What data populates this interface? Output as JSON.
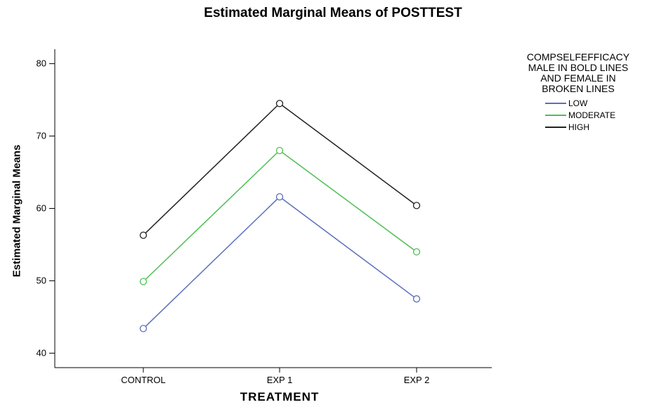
{
  "chart_data": {
    "type": "line",
    "title": "Estimated Marginal Means of POSTTEST",
    "xlabel": "TREATMENT",
    "ylabel": "Estimated Marginal Means",
    "categories": [
      "CONTROL",
      "EXP 1",
      "EXP 2"
    ],
    "ylim": [
      38,
      82
    ],
    "yticks": [
      40,
      50,
      60,
      70,
      80
    ],
    "grid": false,
    "legend": {
      "title": "COMPSELFEFFICACY\nMALE IN BOLD LINES\nAND FEMALE IN\nBROKEN LINES",
      "placement": "right"
    },
    "series": [
      {
        "name": "LOW",
        "values": [
          43.4,
          61.6,
          47.5
        ],
        "color": "#5b6fbd"
      },
      {
        "name": "MODERATE",
        "values": [
          49.9,
          68.0,
          54.0
        ],
        "color": "#4fbf55"
      },
      {
        "name": "HIGH",
        "values": [
          56.3,
          74.5,
          60.4
        ],
        "color": "#222222"
      }
    ]
  }
}
